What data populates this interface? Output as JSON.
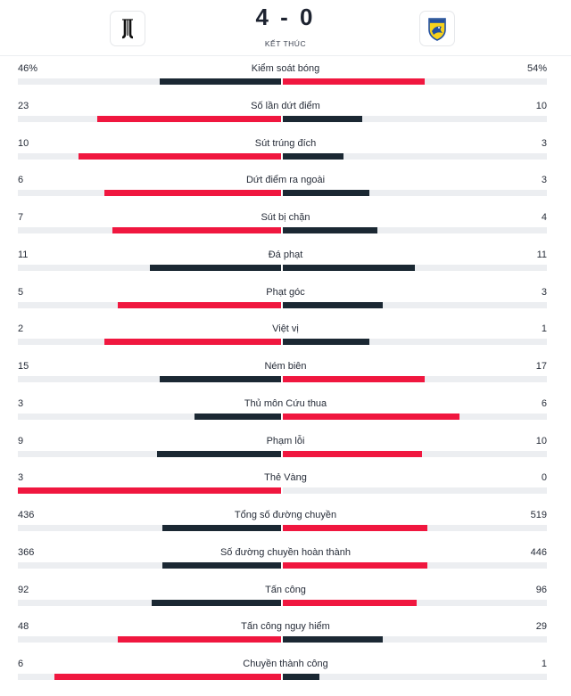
{
  "match": {
    "score": "4 - 0",
    "status": "KẾT THÚC",
    "home_logo_icon": "juventus-logo-icon",
    "away_logo_icon": "frosinone-logo-icon"
  },
  "colors": {
    "leader": "#f0173f",
    "trailer": "#1b2833",
    "track": "#eceef1"
  },
  "stats": [
    {
      "label": "Kiểm soát bóng",
      "home": "46%",
      "away": "54%",
      "home_share": 0.46,
      "away_share": 0.54
    },
    {
      "label": "Số lần dứt điểm",
      "home": "23",
      "away": "10",
      "home_share": 0.7,
      "away_share": 0.3
    },
    {
      "label": "Sút trúng đích",
      "home": "10",
      "away": "3",
      "home_share": 0.77,
      "away_share": 0.23
    },
    {
      "label": "Dứt điểm ra ngoài",
      "home": "6",
      "away": "3",
      "home_share": 0.67,
      "away_share": 0.33
    },
    {
      "label": "Sút bị chặn",
      "home": "7",
      "away": "4",
      "home_share": 0.64,
      "away_share": 0.36
    },
    {
      "label": "Đá phạt",
      "home": "11",
      "away": "11",
      "home_share": 0.5,
      "away_share": 0.5
    },
    {
      "label": "Phạt góc",
      "home": "5",
      "away": "3",
      "home_share": 0.62,
      "away_share": 0.38
    },
    {
      "label": "Việt vị",
      "home": "2",
      "away": "1",
      "home_share": 0.67,
      "away_share": 0.33
    },
    {
      "label": "Ném biên",
      "home": "15",
      "away": "17",
      "home_share": 0.46,
      "away_share": 0.54
    },
    {
      "label": "Thủ môn Cứu thua",
      "home": "3",
      "away": "6",
      "home_share": 0.33,
      "away_share": 0.67
    },
    {
      "label": "Phạm lỗi",
      "home": "9",
      "away": "10",
      "home_share": 0.47,
      "away_share": 0.53
    },
    {
      "label": "Thẻ Vàng",
      "home": "3",
      "away": "0",
      "home_share": 1.0,
      "away_share": 0.0
    },
    {
      "label": "Tổng số đường chuyền",
      "home": "436",
      "away": "519",
      "home_share": 0.45,
      "away_share": 0.55
    },
    {
      "label": "Số đường chuyền hoàn thành",
      "home": "366",
      "away": "446",
      "home_share": 0.45,
      "away_share": 0.55
    },
    {
      "label": "Tấn công",
      "home": "92",
      "away": "96",
      "home_share": 0.49,
      "away_share": 0.51
    },
    {
      "label": "Tấn công nguy hiểm",
      "home": "48",
      "away": "29",
      "home_share": 0.62,
      "away_share": 0.38
    },
    {
      "label": "Chuyền thành công",
      "home": "6",
      "away": "1",
      "home_share": 0.86,
      "away_share": 0.14
    }
  ]
}
